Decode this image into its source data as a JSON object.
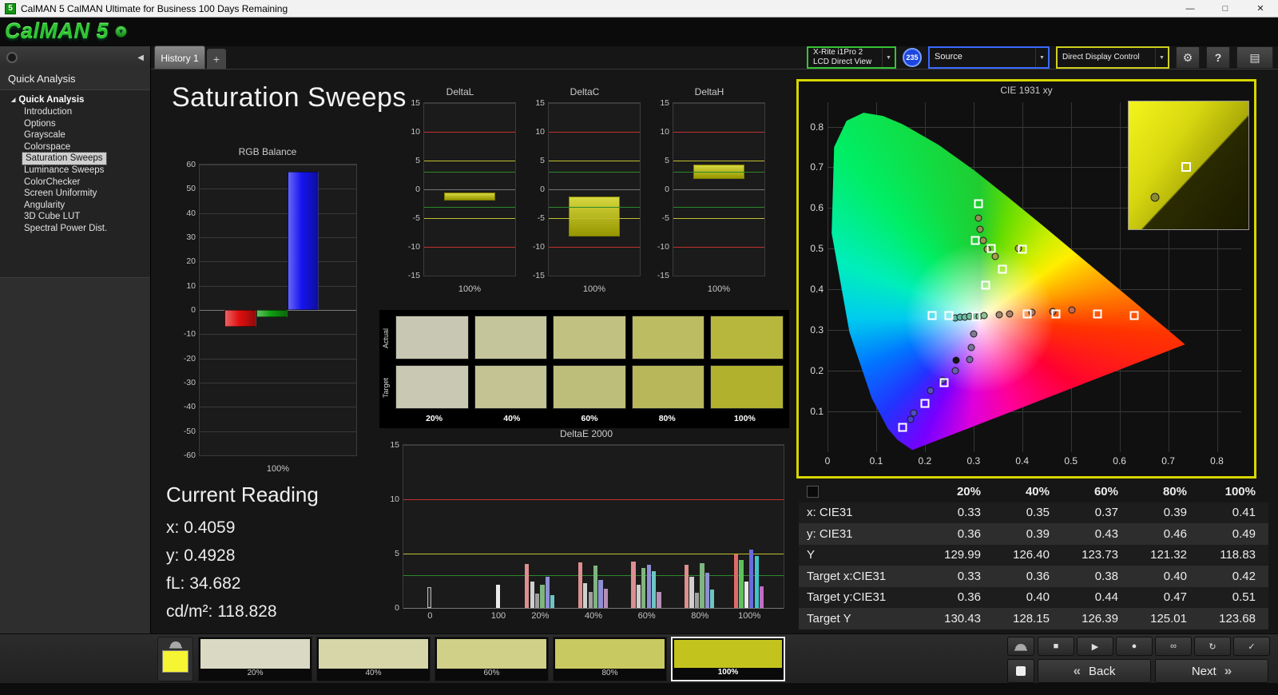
{
  "window": {
    "title": "CalMAN 5 CalMAN Ultimate for Business 100 Days Remaining"
  },
  "logo": {
    "text": "CalMAN 5"
  },
  "tabs": {
    "history": "History 1",
    "add": "+"
  },
  "toolbar": {
    "meter": {
      "line1": "X-Rite i1Pro 2",
      "line2": "LCD Direct View",
      "badge": "235"
    },
    "source": {
      "label": "Source"
    },
    "display_control": {
      "label": "Direct Display Control"
    }
  },
  "sidebar": {
    "header": "Quick Analysis",
    "root": "Quick Analysis",
    "items": [
      "Introduction",
      "Options",
      "Grayscale",
      "Colorspace",
      "Saturation Sweeps",
      "Luminance Sweeps",
      "ColorChecker",
      "Screen Uniformity",
      "Angularity",
      "3D Cube LUT",
      "Spectral Power Dist."
    ],
    "selected_index": 4
  },
  "page": {
    "title": "Saturation Sweeps"
  },
  "current_reading": {
    "heading": "Current Reading",
    "x_label": "x:",
    "x": "0.4059",
    "y_label": "y:",
    "y": "0.4928",
    "fl_label": "fL:",
    "fl": "34.682",
    "cdm2_label": "cd/m²:",
    "cdm2": "118.828"
  },
  "chart_data": [
    {
      "id": "rgb-balance",
      "type": "bar",
      "title": "RGB Balance",
      "categories": [
        "Red",
        "Green",
        "Blue"
      ],
      "values": [
        -7,
        -3,
        57
      ],
      "colors": [
        "#e01010",
        "#10a010",
        "#1515f0"
      ],
      "xlabel": "100%",
      "ylim": [
        -60,
        60
      ],
      "ytick_step": 10,
      "grid": true
    },
    {
      "id": "deltal",
      "type": "bar",
      "title": "DeltaL",
      "bar_range": [
        -0.5,
        -2.0
      ],
      "bar_color": "#c9c900",
      "xlabel": "100%",
      "ylim": [
        -15,
        15
      ],
      "yticks": [
        15,
        10,
        5,
        0,
        -5,
        -10,
        -15
      ],
      "ref_lines": [
        {
          "y": 10,
          "color": "#c03030"
        },
        {
          "y": 5,
          "color": "#c0c030"
        },
        {
          "y": 3,
          "color": "#2a8a2a"
        },
        {
          "y": -3,
          "color": "#2a8a2a"
        },
        {
          "y": -5,
          "color": "#c0c030"
        },
        {
          "y": -10,
          "color": "#c03030"
        }
      ]
    },
    {
      "id": "deltac",
      "type": "bar",
      "title": "DeltaC",
      "bar_range": [
        -1.2,
        -8.2
      ],
      "bar_color": "#c9c900",
      "xlabel": "100%",
      "ylim": [
        -15,
        15
      ],
      "yticks": [
        15,
        10,
        5,
        0,
        -5,
        -10,
        -15
      ],
      "ref_lines": [
        {
          "y": 10,
          "color": "#c03030"
        },
        {
          "y": 5,
          "color": "#c0c030"
        },
        {
          "y": 3,
          "color": "#2a8a2a"
        },
        {
          "y": -3,
          "color": "#2a8a2a"
        },
        {
          "y": -5,
          "color": "#c0c030"
        },
        {
          "y": -10,
          "color": "#c03030"
        }
      ]
    },
    {
      "id": "deltah",
      "type": "bar",
      "title": "DeltaH",
      "bar_range": [
        1.8,
        4.3
      ],
      "bar_color": "#c9c900",
      "xlabel": "100%",
      "ylim": [
        -15,
        15
      ],
      "yticks": [
        15,
        10,
        5,
        0,
        -5,
        -10,
        -15
      ],
      "ref_lines": [
        {
          "y": 10,
          "color": "#c03030"
        },
        {
          "y": 5,
          "color": "#c0c030"
        },
        {
          "y": 3,
          "color": "#2a8a2a"
        },
        {
          "y": -3,
          "color": "#2a8a2a"
        },
        {
          "y": -5,
          "color": "#c0c030"
        },
        {
          "y": -10,
          "color": "#c03030"
        }
      ]
    },
    {
      "id": "deltae",
      "type": "bar",
      "title": "DeltaE 2000",
      "ylim": [
        0,
        15
      ],
      "yticks": [
        0,
        5,
        10,
        15
      ],
      "ref_lines": [
        {
          "y": 10,
          "color": "#c03030"
        },
        {
          "y": 5,
          "color": "#c0c030"
        },
        {
          "y": 3,
          "color": "#2a8a2a"
        }
      ],
      "categories": [
        "0",
        "100",
        "20%",
        "40%",
        "60%",
        "80%",
        "100%"
      ],
      "group_pos": [
        7,
        25,
        36,
        50,
        64,
        78,
        91
      ],
      "groups": [
        {
          "bars": [
            {
              "v": 1.9,
              "c": "#2e2e2e",
              "b": 1
            }
          ]
        },
        {
          "bars": [
            {
              "v": 2.1,
              "c": "#ececec"
            }
          ]
        },
        {
          "bars": [
            {
              "v": 4.05,
              "c": "#dd8f8f"
            },
            {
              "v": 2.4,
              "c": "#cfcfcf"
            },
            {
              "v": 1.3,
              "c": "#9f9f9f"
            },
            {
              "v": 2.15,
              "c": "#7fb57f"
            },
            {
              "v": 2.9,
              "c": "#8f8fd5"
            },
            {
              "v": 1.15,
              "c": "#6fc5c5"
            }
          ]
        },
        {
          "bars": [
            {
              "v": 4.2,
              "c": "#dd8f8f"
            },
            {
              "v": 2.25,
              "c": "#cfcfcf"
            },
            {
              "v": 1.45,
              "c": "#9f9f9f"
            },
            {
              "v": 3.9,
              "c": "#7fb57f"
            },
            {
              "v": 2.6,
              "c": "#8f8fd5"
            },
            {
              "v": 1.8,
              "c": "#b58fb5"
            }
          ]
        },
        {
          "bars": [
            {
              "v": 4.3,
              "c": "#dd8f8f"
            },
            {
              "v": 2.1,
              "c": "#cfcfcf"
            },
            {
              "v": 3.7,
              "c": "#7fb57f"
            },
            {
              "v": 3.95,
              "c": "#8f8fd5"
            },
            {
              "v": 3.4,
              "c": "#6fc5c5"
            },
            {
              "v": 1.45,
              "c": "#b58fb5"
            }
          ]
        },
        {
          "bars": [
            {
              "v": 4.0,
              "c": "#dd8f8f"
            },
            {
              "v": 2.85,
              "c": "#cfcfcf"
            },
            {
              "v": 1.4,
              "c": "#9f9f9f"
            },
            {
              "v": 4.1,
              "c": "#7fb57f"
            },
            {
              "v": 3.25,
              "c": "#8f8fd5"
            },
            {
              "v": 1.7,
              "c": "#6fc5c5"
            }
          ]
        },
        {
          "bars": [
            {
              "v": 4.95,
              "c": "#e06a6a"
            },
            {
              "v": 4.4,
              "c": "#5fc05f"
            },
            {
              "v": 2.45,
              "c": "#e8e8e8"
            },
            {
              "v": 5.4,
              "c": "#6a6ae0"
            },
            {
              "v": 4.75,
              "c": "#3fc5c5"
            },
            {
              "v": 1.95,
              "c": "#c56ac5"
            }
          ]
        }
      ]
    },
    {
      "id": "cie",
      "type": "scatter",
      "title": "CIE 1931 xy",
      "xlim": [
        0,
        0.85
      ],
      "ylim": [
        0,
        0.86
      ],
      "xticks": [
        "0",
        "0.1",
        "0.2",
        "0.3",
        "0.4",
        "0.5",
        "0.6",
        "0.7",
        "0.8"
      ],
      "yticks": [
        "0.1",
        "0.2",
        "0.3",
        "0.4",
        "0.5",
        "0.6",
        "0.7",
        "0.8"
      ],
      "white_point": [
        0.3127,
        0.329
      ],
      "targets": [
        [
          0.155,
          0.06
        ],
        [
          0.2,
          0.12
        ],
        [
          0.24,
          0.17
        ],
        [
          0.215,
          0.335
        ],
        [
          0.25,
          0.335
        ],
        [
          0.306,
          0.334
        ],
        [
          0.41,
          0.34
        ],
        [
          0.47,
          0.34
        ],
        [
          0.555,
          0.34
        ],
        [
          0.63,
          0.335
        ],
        [
          0.31,
          0.61
        ],
        [
          0.304,
          0.52
        ],
        [
          0.336,
          0.5
        ],
        [
          0.4,
          0.498
        ],
        [
          0.36,
          0.45
        ],
        [
          0.325,
          0.41
        ]
      ],
      "measurements": [
        [
          0.31,
          0.575,
          "#8f8f55"
        ],
        [
          0.314,
          0.547,
          "#8f8f55"
        ],
        [
          0.32,
          0.521,
          "#96964f"
        ],
        [
          0.329,
          0.498,
          "#9c9c4a"
        ],
        [
          0.344,
          0.481,
          "#a2a246"
        ],
        [
          0.392,
          0.5,
          "#a8a840"
        ],
        [
          0.262,
          0.33,
          "#5fb3a8"
        ],
        [
          0.272,
          0.331,
          "#67b7a6"
        ],
        [
          0.282,
          0.332,
          "#6fbba4"
        ],
        [
          0.292,
          0.333,
          "#77bfa0"
        ],
        [
          0.302,
          0.334,
          "#7fc39c"
        ],
        [
          0.312,
          0.334,
          "#87c396"
        ],
        [
          0.322,
          0.335,
          "#8fc390"
        ],
        [
          0.352,
          0.338,
          "#a3876f"
        ],
        [
          0.374,
          0.34,
          "#ab7f67"
        ],
        [
          0.42,
          0.344,
          "#b3775f"
        ],
        [
          0.462,
          0.346,
          "#bb6f57"
        ],
        [
          0.502,
          0.35,
          "#c3674f"
        ],
        [
          0.3,
          0.29,
          "#7f7b93"
        ],
        [
          0.296,
          0.258,
          "#77739b"
        ],
        [
          0.292,
          0.228,
          "#6f6ba3"
        ],
        [
          0.262,
          0.2,
          "#6763ab"
        ],
        [
          0.236,
          0.176,
          "#5f5bb3"
        ],
        [
          0.212,
          0.152,
          "#5753bb"
        ],
        [
          0.178,
          0.096,
          "#4f4bc3"
        ],
        [
          0.17,
          0.08,
          "#4743cb"
        ],
        [
          0.265,
          0.225,
          "#141414"
        ]
      ]
    }
  ],
  "swatches": {
    "row_labels": [
      "Actual",
      "Target"
    ],
    "column_labels": [
      "20%",
      "40%",
      "60%",
      "80%",
      "100%"
    ],
    "actual_colors": [
      "#c7c7b3",
      "#c5c59b",
      "#c1c181",
      "#bcbc62",
      "#b7b73e"
    ],
    "target_colors": [
      "#c8c8b3",
      "#c3c394",
      "#bebe7b",
      "#b8b85a",
      "#b1b12e"
    ]
  },
  "table": {
    "headers": [
      "",
      "20%",
      "40%",
      "60%",
      "80%",
      "100%"
    ],
    "rows": [
      {
        "label": "x: CIE31",
        "values": [
          "0.33",
          "0.35",
          "0.37",
          "0.39",
          "0.41"
        ]
      },
      {
        "label": "y: CIE31",
        "values": [
          "0.36",
          "0.39",
          "0.43",
          "0.46",
          "0.49"
        ]
      },
      {
        "label": "Y",
        "values": [
          "129.99",
          "126.40",
          "123.73",
          "121.32",
          "118.83"
        ]
      },
      {
        "label": "Target x:CIE31",
        "values": [
          "0.33",
          "0.36",
          "0.38",
          "0.40",
          "0.42"
        ]
      },
      {
        "label": "Target y:CIE31",
        "values": [
          "0.36",
          "0.40",
          "0.44",
          "0.47",
          "0.51"
        ]
      },
      {
        "label": "Target Y",
        "values": [
          "130.43",
          "128.15",
          "126.39",
          "125.01",
          "123.68"
        ]
      }
    ]
  },
  "pattern_bar": {
    "current_color": "#f5f533",
    "buttons": [
      {
        "label": "20%",
        "color": "#dadac4",
        "selected": false
      },
      {
        "label": "40%",
        "color": "#d6d6a8",
        "selected": false
      },
      {
        "label": "60%",
        "color": "#d0d088",
        "selected": false
      },
      {
        "label": "80%",
        "color": "#c9c962",
        "selected": false
      },
      {
        "label": "100%",
        "color": "#c3c31e",
        "selected": true
      }
    ]
  },
  "transport": {
    "buttons": [
      {
        "icon": "stop-icon"
      },
      {
        "icon": "play-icon"
      },
      {
        "icon": "record-icon"
      },
      {
        "icon": "infinity-icon"
      },
      {
        "icon": "loop-icon"
      },
      {
        "icon": "check-icon"
      }
    ]
  },
  "nav": {
    "back": "Back",
    "next": "Next"
  },
  "icons": {
    "titlebar": [
      "app-icon",
      "minimize-icon",
      "maximize-icon",
      "close-icon"
    ],
    "sidebar": [
      "radio-icon",
      "collapse-left-icon",
      "tree-expand-icon"
    ],
    "toolbar": [
      "chevron-down-icon",
      "gear-icon",
      "help-icon",
      "panel-icon"
    ],
    "bottom": [
      "shade-icon",
      "window-icon",
      "stop-icon",
      "play-icon",
      "record-icon",
      "infinity-icon",
      "loop-icon",
      "check-icon",
      "back-chevrons-icon",
      "next-chevrons-icon"
    ]
  }
}
